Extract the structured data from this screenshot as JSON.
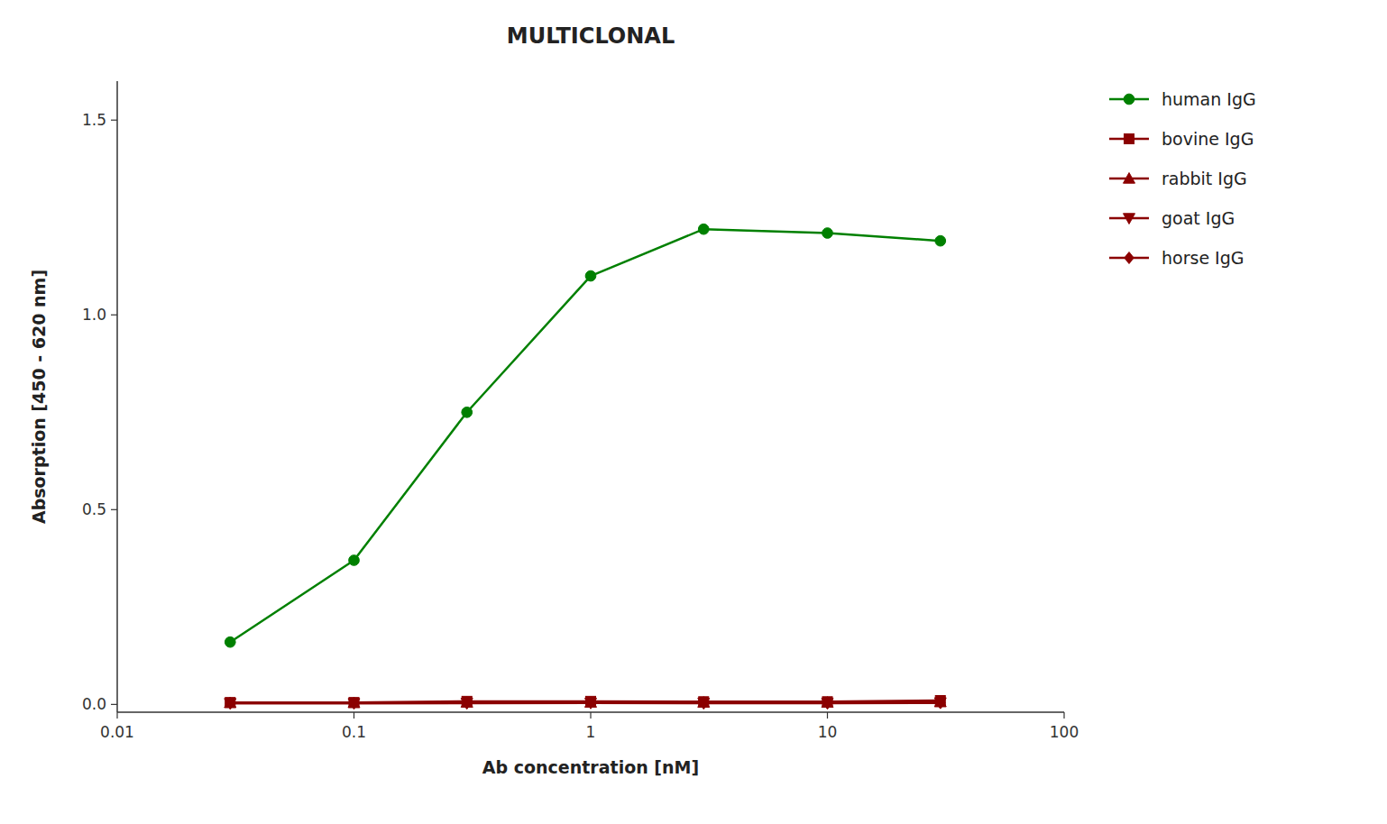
{
  "chart_data": {
    "type": "line",
    "title": "MULTICLONAL",
    "xlabel": "Ab concentration [nM]",
    "ylabel": "Absorption [450 - 620 nm]",
    "x": [
      0.03,
      0.1,
      0.3,
      1.0,
      3.0,
      10.0,
      30.0
    ],
    "series": [
      {
        "name": "human IgG",
        "color": "#008000",
        "marker": "circle",
        "values": [
          0.16,
          0.37,
          0.75,
          1.1,
          1.22,
          1.21,
          1.19
        ]
      },
      {
        "name": "bovine IgG",
        "color": "#8B0000",
        "marker": "square",
        "values": [
          0.005,
          0.005,
          0.008,
          0.008,
          0.007,
          0.007,
          0.01
        ]
      },
      {
        "name": "rabbit IgG",
        "color": "#8B0000",
        "marker": "triangle-up",
        "values": [
          0.004,
          0.004,
          0.005,
          0.005,
          0.005,
          0.005,
          0.006
        ]
      },
      {
        "name": "goat IgG",
        "color": "#8B0000",
        "marker": "triangle-down",
        "values": [
          0.003,
          0.003,
          0.004,
          0.004,
          0.004,
          0.004,
          0.005
        ]
      },
      {
        "name": "horse IgG",
        "color": "#8B0000",
        "marker": "diamond",
        "values": [
          0.003,
          0.003,
          0.003,
          0.004,
          0.003,
          0.003,
          0.004
        ]
      }
    ],
    "log": "x",
    "xlim": [
      0.01,
      100
    ],
    "xticks": [
      0.01,
      0.1,
      1,
      10,
      100
    ],
    "ylim": [
      -0.02,
      1.6
    ],
    "yticks": [
      {
        "value": 0.0,
        "label": "0.0"
      },
      0.5,
      {
        "value": 1.0,
        "label": "1.0"
      },
      1.5
    ],
    "grid": false,
    "legend": "right"
  }
}
